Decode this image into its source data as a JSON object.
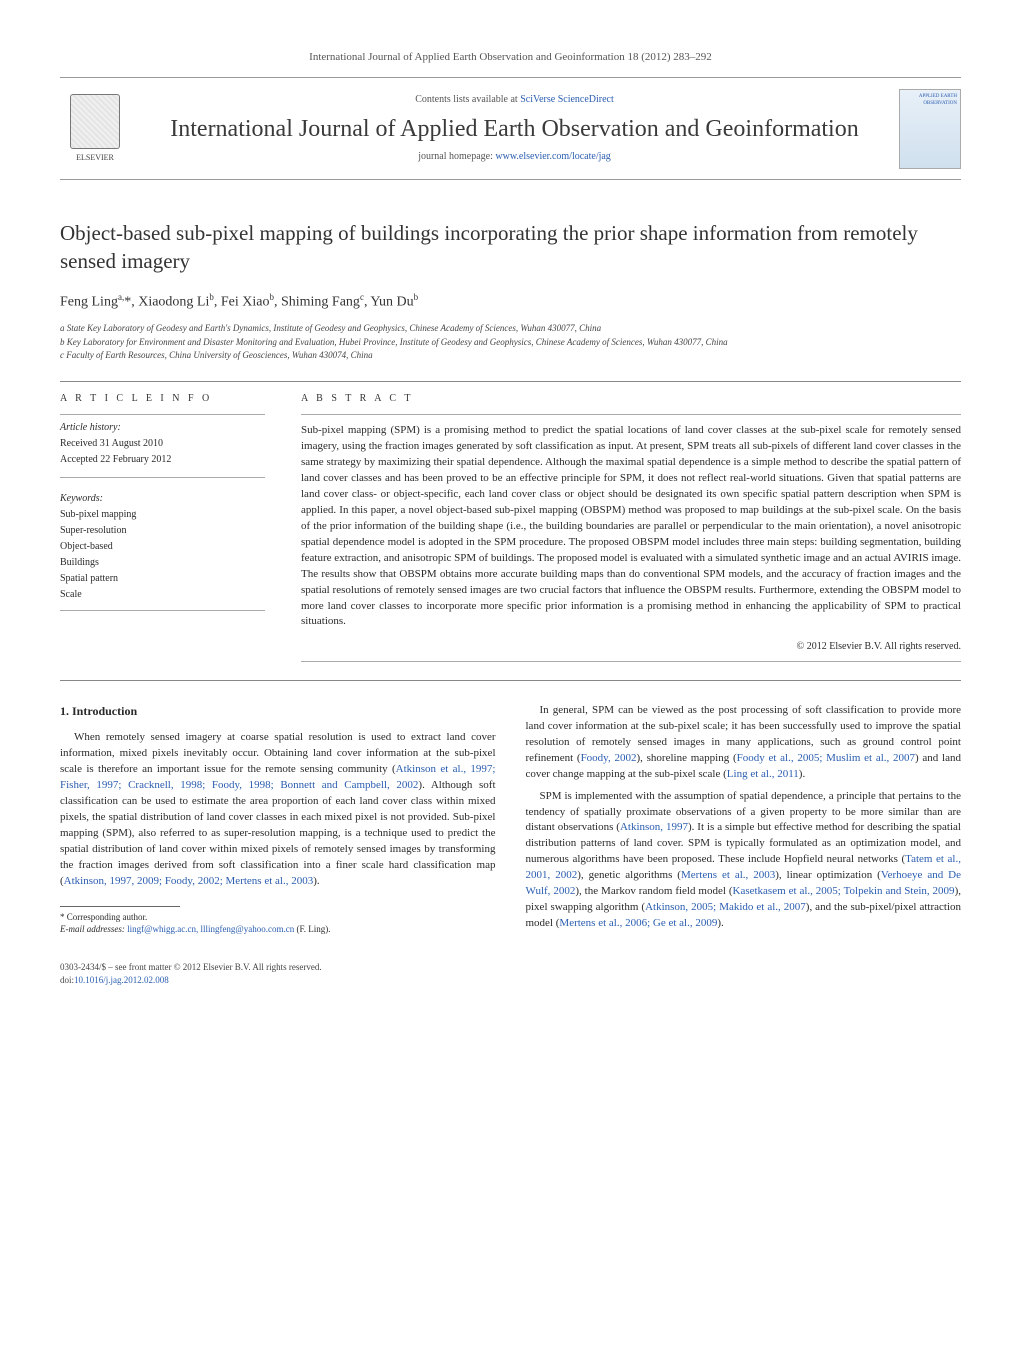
{
  "header": {
    "journal_ref": "International Journal of Applied Earth Observation and Geoinformation 18 (2012) 283–292",
    "contents_prefix": "Contents lists available at ",
    "contents_link_text": "SciVerse ScienceDirect",
    "journal_title": "International Journal of Applied Earth Observation and Geoinformation",
    "homepage_prefix": "journal homepage: ",
    "homepage_url": "www.elsevier.com/locate/jag",
    "publisher_name": "ELSEVIER",
    "cover_text": "APPLIED EARTH OBSERVATION"
  },
  "article": {
    "title": "Object-based sub-pixel mapping of buildings incorporating the prior shape information from remotely sensed imagery",
    "authors_html": "Feng Ling<sup>a,</sup>*, Xiaodong Li<sup>b</sup>, Fei Xiao<sup>b</sup>, Shiming Fang<sup>c</sup>, Yun Du<sup>b</sup>",
    "affiliations": [
      "a State Key Laboratory of Geodesy and Earth's Dynamics, Institute of Geodesy and Geophysics, Chinese Academy of Sciences, Wuhan 430077, China",
      "b Key Laboratory for Environment and Disaster Monitoring and Evaluation, Hubei Province, Institute of Geodesy and Geophysics, Chinese Academy of Sciences, Wuhan 430077, China",
      "c Faculty of Earth Resources, China University of Geosciences, Wuhan 430074, China"
    ]
  },
  "info": {
    "heading": "a r t i c l e   i n f o",
    "history_label": "Article history:",
    "received": "Received 31 August 2010",
    "accepted": "Accepted 22 February 2012",
    "keywords_label": "Keywords:",
    "keywords": [
      "Sub-pixel mapping",
      "Super-resolution",
      "Object-based",
      "Buildings",
      "Spatial pattern",
      "Scale"
    ]
  },
  "abstract": {
    "heading": "a b s t r a c t",
    "text": "Sub-pixel mapping (SPM) is a promising method to predict the spatial locations of land cover classes at the sub-pixel scale for remotely sensed imagery, using the fraction images generated by soft classification as input. At present, SPM treats all sub-pixels of different land cover classes in the same strategy by maximizing their spatial dependence. Although the maximal spatial dependence is a simple method to describe the spatial pattern of land cover classes and has been proved to be an effective principle for SPM, it does not reflect real-world situations. Given that spatial patterns are land cover class- or object-specific, each land cover class or object should be designated its own specific spatial pattern description when SPM is applied. In this paper, a novel object-based sub-pixel mapping (OBSPM) method was proposed to map buildings at the sub-pixel scale. On the basis of the prior information of the building shape (i.e., the building boundaries are parallel or perpendicular to the main orientation), a novel anisotropic spatial dependence model is adopted in the SPM procedure. The proposed OBSPM model includes three main steps: building segmentation, building feature extraction, and anisotropic SPM of buildings. The proposed model is evaluated with a simulated synthetic image and an actual AVIRIS image. The results show that OBSPM obtains more accurate building maps than do conventional SPM models, and the accuracy of fraction images and the spatial resolutions of remotely sensed images are two crucial factors that influence the OBSPM results. Furthermore, extending the OBSPM model to more land cover classes to incorporate more specific prior information is a promising method in enhancing the applicability of SPM to practical situations.",
    "copyright": "© 2012 Elsevier B.V. All rights reserved."
  },
  "section1": {
    "heading": "1. Introduction",
    "p1_pre": "When remotely sensed imagery at coarse spatial resolution is used to extract land cover information, mixed pixels inevitably occur. Obtaining land cover information at the sub-pixel scale is therefore an important issue for the remote sensing community (",
    "p1_ref1": "Atkinson et al., 1997; Fisher, 1997; Cracknell, 1998; Foody, 1998; Bonnett and Campbell, 2002",
    "p1_mid": "). Although soft classification can be used to estimate the area proportion of each land cover class within mixed pixels, the spatial distribution of land cover classes in each mixed pixel is not provided. Sub-pixel mapping (SPM), also referred to as super-resolution mapping, is a technique used to predict the spatial distribution of land cover within mixed pixels of remotely sensed images by transforming the fraction images derived from soft classification into a finer scale hard classification map (",
    "p1_ref2": "Atkinson, 1997, 2009; Foody, 2002; Mertens et al., 2003",
    "p1_post": ").",
    "p2_pre": "In general, SPM can be viewed as the post processing of soft classification to provide more land cover information at the sub-pixel scale; it has been successfully used to improve the spatial resolution of remotely sensed images in many applications, such as ground control point refinement (",
    "p2_ref1": "Foody, 2002",
    "p2_mid1": "), shoreline mapping (",
    "p2_ref2": "Foody et al., 2005; Muslim et al., 2007",
    "p2_mid2": ") and land cover change mapping at the sub-pixel scale (",
    "p2_ref3": "Ling et al., 2011",
    "p2_post": ").",
    "p3_pre": "SPM is implemented with the assumption of spatial dependence, a principle that pertains to the tendency of spatially proximate observations of a given property to be more similar than are distant observations (",
    "p3_ref1": "Atkinson, 1997",
    "p3_mid1": "). It is a simple but effective method for describing the spatial distribution patterns of land cover. SPM is typically formulated as an optimization model, and numerous algorithms have been proposed. These include Hopfield neural networks (",
    "p3_ref2": "Tatem et al., 2001, 2002",
    "p3_mid2": "), genetic algorithms (",
    "p3_ref3": "Mertens et al., 2003",
    "p3_mid3": "), linear optimization (",
    "p3_ref4": "Verhoeye and De Wulf, 2002",
    "p3_mid4": "), the Markov random field model (",
    "p3_ref5": "Kasetkasem et al., 2005; Tolpekin and Stein, 2009",
    "p3_mid5": "), pixel swapping algorithm (",
    "p3_ref6": "Atkinson, 2005; Makido et al., 2007",
    "p3_mid6": "), and the sub-pixel/pixel attraction model (",
    "p3_ref7": "Mertens et al., 2006; Ge et al., 2009",
    "p3_post": ")."
  },
  "footnotes": {
    "corr_label": "* Corresponding author.",
    "email_label": "E-mail addresses:",
    "emails": "lingf@whigg.ac.cn, lllingfeng@yahoo.com.cn",
    "email_attrib": "(F. Ling)."
  },
  "footer": {
    "issn_line": "0303-2434/$ – see front matter © 2012 Elsevier B.V. All rights reserved.",
    "doi_label": "doi:",
    "doi": "10.1016/j.jag.2012.02.008"
  },
  "colors": {
    "link": "#2a5db0",
    "text": "#2a2a2a",
    "rule": "#888888"
  }
}
